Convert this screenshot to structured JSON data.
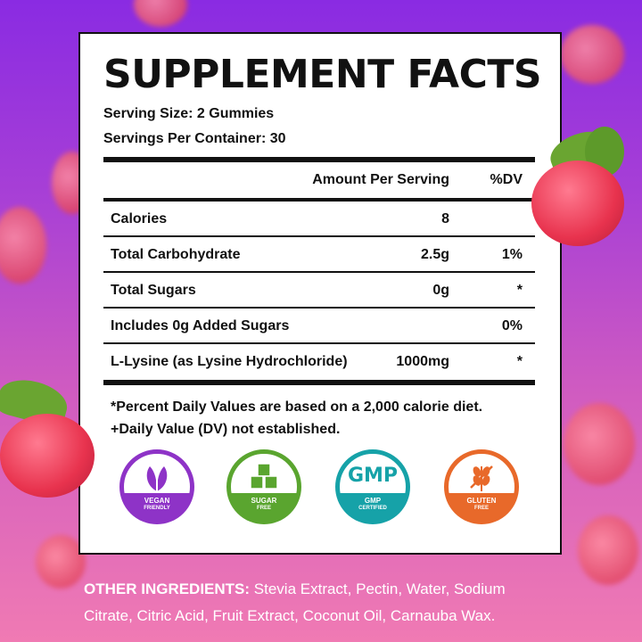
{
  "panel": {
    "title": "SUPPLEMENT FACTS",
    "serving_size": "Serving Size: 2 Gummies",
    "servings_per_container": "Servings Per Container: 30",
    "header_amount": "Amount Per Serving",
    "header_dv": "%DV",
    "rows": [
      {
        "label": "Calories",
        "amount": "8",
        "dv": ""
      },
      {
        "label": "Total Carbohydrate",
        "amount": "2.5g",
        "dv": "1%"
      },
      {
        "label": "Total Sugars",
        "amount": "0g",
        "dv": "*"
      },
      {
        "label": "Includes 0g Added Sugars",
        "amount": "",
        "dv": "0%"
      },
      {
        "label": "L-Lysine (as Lysine Hydrochloride)",
        "amount": "1000mg",
        "dv": "*"
      }
    ],
    "footnote_1": "*Percent Daily Values are based on a 2,000 calorie diet.",
    "footnote_2": "+Daily Value (DV) not established."
  },
  "badges": [
    {
      "icon": "leaf-icon",
      "line1": "VEGAN",
      "line2": "FRIENDLY",
      "color": "#8e33c7"
    },
    {
      "icon": "sugar-cubes-icon",
      "line1": "SUGAR",
      "line2": "FREE",
      "color": "#5aa52f"
    },
    {
      "icon": "gmp-icon",
      "line1": "GMP",
      "line2": "CERTIFIED",
      "glyph": "GMP",
      "color": "#16a2a8"
    },
    {
      "icon": "wheat-icon",
      "line1": "GLUTEN",
      "line2": "FREE",
      "color": "#e8692a"
    }
  ],
  "other_ingredients": {
    "label": "OTHER INGREDIENTS:",
    "line1": " Stevia Extract, Pectin, Water, Sodium",
    "line2": "Citrate, Citric Acid, Fruit Extract, Coconut Oil, Carnauba Wax."
  },
  "colors": {
    "background_top": "#8a2be2",
    "background_bottom": "#f07ab3",
    "raspberry": "#e8334e",
    "leaf": "#6aa531"
  }
}
